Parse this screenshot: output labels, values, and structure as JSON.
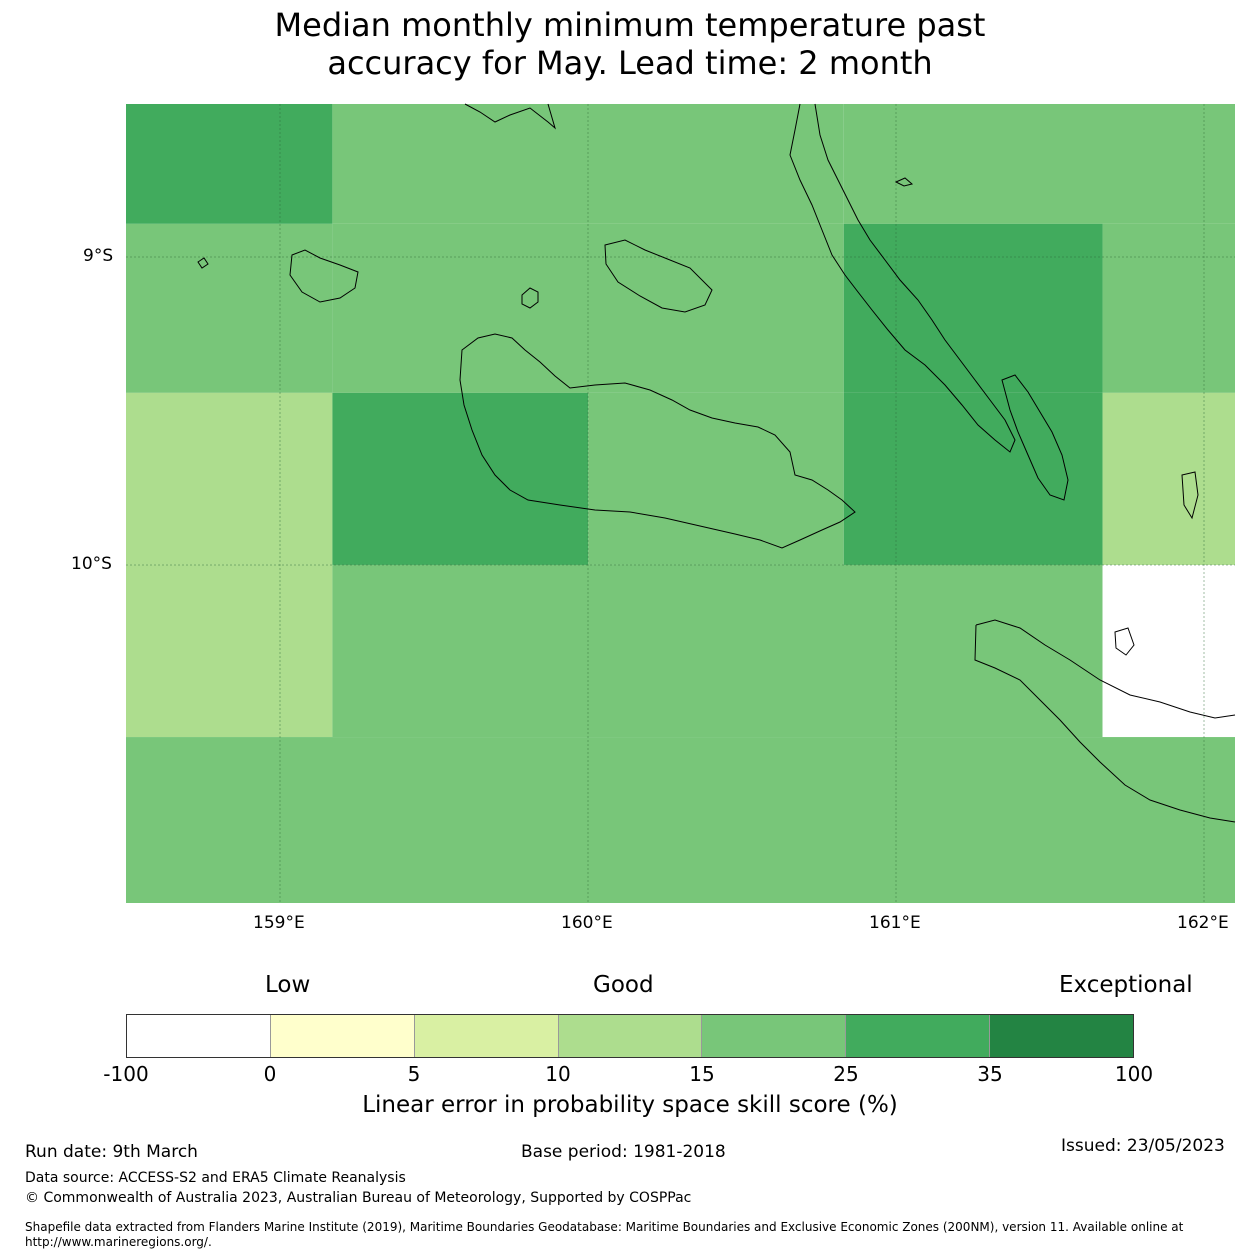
{
  "title": {
    "line1": "Median monthly minimum temperature past",
    "line2": "accuracy for May. Lead time: 2 month"
  },
  "map": {
    "lon_range": [
      158.5,
      162.1
    ],
    "lat_range": [
      -11.1,
      -8.5
    ],
    "lat_ticks": [
      "9°S",
      "10°S"
    ],
    "lon_ticks": [
      "159°E",
      "160°E",
      "161°E",
      "162°E"
    ],
    "skill_colors": {
      "below_0": "#ffffff",
      "0_5": "#ffffcc",
      "5_10": "#d9f0a3",
      "10_15": "#addd8e",
      "15_25": "#78c679",
      "25_35": "#41ab5d",
      "35_100": "#238443"
    },
    "grid_cells": [
      {
        "lon": [
          158.5,
          159.17
        ],
        "lat": [
          -8.5,
          -8.89
        ],
        "class": "25_35"
      },
      {
        "lon": [
          159.17,
          160.83
        ],
        "lat": [
          -8.5,
          -8.89
        ],
        "class": "15_25"
      },
      {
        "lon": [
          160.83,
          162.1
        ],
        "lat": [
          -8.5,
          -8.89
        ],
        "class": "15_25"
      },
      {
        "lon": [
          158.5,
          159.17
        ],
        "lat": [
          -8.89,
          -9.44
        ],
        "class": "15_25"
      },
      {
        "lon": [
          159.17,
          160.83
        ],
        "lat": [
          -8.89,
          -9.44
        ],
        "class": "15_25"
      },
      {
        "lon": [
          160.83,
          161.67
        ],
        "lat": [
          -8.89,
          -9.44
        ],
        "class": "25_35"
      },
      {
        "lon": [
          161.67,
          162.1
        ],
        "lat": [
          -8.89,
          -9.44
        ],
        "class": "15_25"
      },
      {
        "lon": [
          158.5,
          159.17
        ],
        "lat": [
          -9.44,
          -10.0
        ],
        "class": "10_15"
      },
      {
        "lon": [
          159.17,
          160.0
        ],
        "lat": [
          -9.44,
          -10.0
        ],
        "class": "25_35"
      },
      {
        "lon": [
          160.0,
          160.83
        ],
        "lat": [
          -9.44,
          -10.0
        ],
        "class": "15_25"
      },
      {
        "lon": [
          160.83,
          161.67
        ],
        "lat": [
          -9.44,
          -10.0
        ],
        "class": "25_35"
      },
      {
        "lon": [
          161.67,
          162.1
        ],
        "lat": [
          -9.44,
          -10.0
        ],
        "class": "10_15"
      },
      {
        "lon": [
          158.5,
          159.17
        ],
        "lat": [
          -10.0,
          -10.56
        ],
        "class": "10_15"
      },
      {
        "lon": [
          159.17,
          161.67
        ],
        "lat": [
          -10.0,
          -10.56
        ],
        "class": "15_25"
      },
      {
        "lon": [
          161.67,
          162.1
        ],
        "lat": [
          -10.0,
          -10.56
        ],
        "class": "below_0"
      },
      {
        "lon": [
          158.5,
          162.1
        ],
        "lat": [
          -10.56,
          -11.1
        ],
        "class": "15_25"
      }
    ]
  },
  "legend": {
    "categories": [
      "Low",
      "Good",
      "Exceptional"
    ],
    "bins": [
      "-100",
      "0",
      "5",
      "10",
      "15",
      "25",
      "35",
      "100"
    ],
    "colors": [
      "#ffffff",
      "#ffffcc",
      "#d9f0a3",
      "#addd8e",
      "#78c679",
      "#41ab5d",
      "#238443"
    ],
    "label": "Linear error in probability space skill score (%)"
  },
  "footer": {
    "run_date": "Run date: 9th March",
    "base_period": "Base period: 1981-2018",
    "issued": "Issued: 23/05/2023",
    "data_source": "Data source: ACCESS-S2 and ERA5 Climate Reanalysis",
    "copyright": "© Commonwealth of Australia 2023, Australian Bureau of Meteorology, Supported by COSPPac",
    "shapefile": "Shapefile data extracted from Flanders Marine Institute (2019), Maritime Boundaries Geodatabase: Maritime Boundaries and Exclusive Economic Zones (200NM), version 11. Available online at http://www.marineregions.org/."
  }
}
